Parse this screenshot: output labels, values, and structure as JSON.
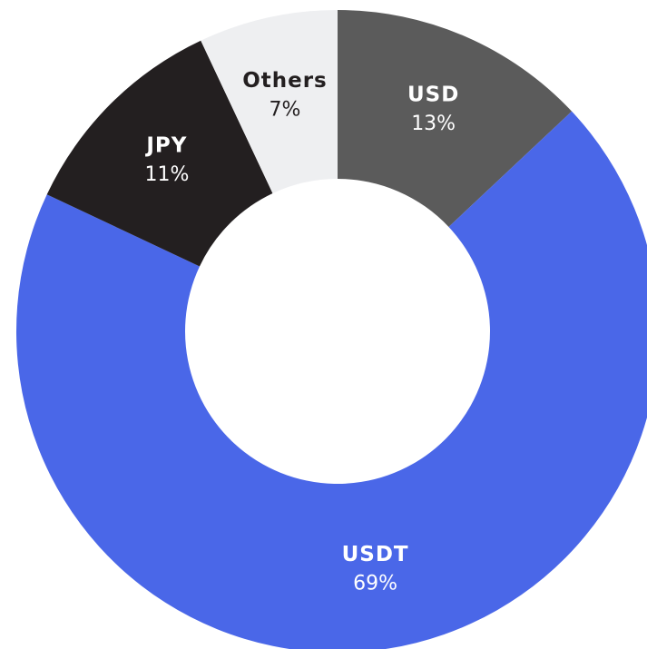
{
  "chart_data": {
    "type": "donut",
    "categories": [
      "USD",
      "USDT",
      "JPY",
      "Others"
    ],
    "values": [
      13,
      69,
      11,
      7
    ],
    "value_labels": [
      "13%",
      "69%",
      "11%",
      "7%"
    ],
    "colors": [
      "#5b5b5b",
      "#4a67e8",
      "#231f20",
      "#eeeff1"
    ]
  }
}
